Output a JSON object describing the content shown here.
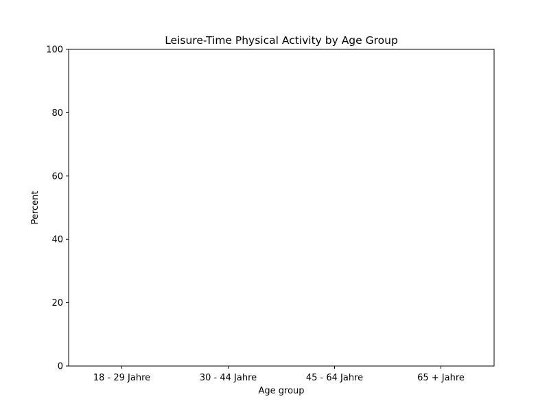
{
  "chart_data": {
    "type": "bar",
    "title": "Leisure-Time Physical Activity by Age Group",
    "xlabel": "Age group",
    "ylabel": "Percent",
    "categories": [
      "18 - 29 Jahre",
      "30 - 44 Jahre",
      "45 - 64 Jahre",
      "65 + Jahre"
    ],
    "values": [
      0,
      0,
      0,
      0
    ],
    "ylim": [
      0,
      100
    ],
    "yticks": [
      0,
      20,
      40,
      60,
      80,
      100
    ],
    "grid": false,
    "legend": "none"
  }
}
